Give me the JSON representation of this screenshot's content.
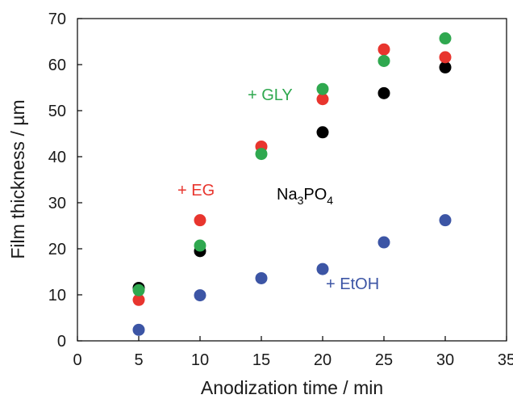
{
  "chart_data": {
    "type": "scatter",
    "title": "",
    "xlabel": "Anodization time / min",
    "ylabel": "Film thickness / µm",
    "xlim": [
      0,
      35
    ],
    "ylim": [
      0,
      70
    ],
    "xticks": [
      "0",
      "5",
      "10",
      "15",
      "20",
      "25",
      "30",
      "35"
    ],
    "yticks": [
      "0",
      "10",
      "20",
      "30",
      "40",
      "50",
      "60",
      "70"
    ],
    "grid": false,
    "legend": "inline labels",
    "series": [
      {
        "name": "Na3PO4",
        "label_main": "Na",
        "label_sub": "3",
        "label_tail": "PO",
        "label_sub2": "4",
        "color": "#000000",
        "x": [
          5,
          10,
          20,
          25,
          30
        ],
        "y": [
          11.5,
          19.5,
          45.3,
          53.8,
          59.4
        ]
      },
      {
        "name": "+ EG",
        "color": "#e8352e",
        "x": [
          5,
          10,
          15,
          20,
          25,
          30
        ],
        "y": [
          8.9,
          26.2,
          42.2,
          52.5,
          63.3,
          61.6
        ]
      },
      {
        "name": "+ GLY",
        "color": "#2fa84f",
        "x": [
          5,
          10,
          15,
          20,
          25,
          30
        ],
        "y": [
          11.0,
          20.7,
          40.6,
          54.7,
          60.8,
          65.7
        ]
      },
      {
        "name": "+ EtOH",
        "color": "#3c55a5",
        "x": [
          5,
          10,
          15,
          20,
          25,
          30
        ],
        "y": [
          2.4,
          9.9,
          13.6,
          15.6,
          21.4,
          26.2
        ]
      }
    ]
  }
}
